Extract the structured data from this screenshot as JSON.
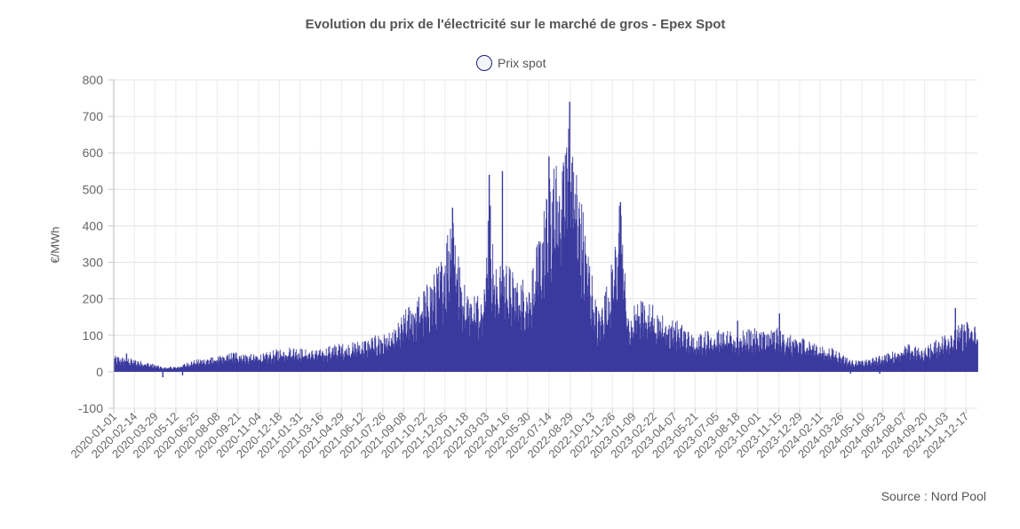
{
  "chart_data": {
    "type": "bar",
    "title": "Evolution du prix de l'électricité sur le marché de gros - Epex Spot",
    "ylabel": "€/MWh",
    "xlabel": "",
    "ylim": [
      -100,
      800
    ],
    "yticks": [
      "800",
      "700",
      "600",
      "500",
      "400",
      "300",
      "200",
      "100",
      "0",
      "-100"
    ],
    "grid": true,
    "legend_position": "top-center",
    "series": [
      {
        "name": "Prix spot",
        "color": "#3a3a9e",
        "frequency": "daily",
        "anchors": [
          [
            "2020-01-01",
            35
          ],
          [
            "2020-02-01",
            30
          ],
          [
            "2020-03-15",
            20
          ],
          [
            "2020-04-15",
            10
          ],
          [
            "2020-05-15",
            12
          ],
          [
            "2020-06-15",
            25
          ],
          [
            "2020-07-15",
            30
          ],
          [
            "2020-08-15",
            35
          ],
          [
            "2020-09-15",
            45
          ],
          [
            "2020-10-15",
            38
          ],
          [
            "2020-11-15",
            40
          ],
          [
            "2020-12-15",
            50
          ],
          [
            "2021-01-15",
            55
          ],
          [
            "2021-02-15",
            48
          ],
          [
            "2021-03-15",
            50
          ],
          [
            "2021-04-15",
            60
          ],
          [
            "2021-05-15",
            62
          ],
          [
            "2021-06-15",
            70
          ],
          [
            "2021-07-15",
            80
          ],
          [
            "2021-08-15",
            85
          ],
          [
            "2021-09-15",
            140
          ],
          [
            "2021-10-15",
            170
          ],
          [
            "2021-11-15",
            220
          ],
          [
            "2021-12-01",
            260
          ],
          [
            "2021-12-21",
            380
          ],
          [
            "2022-01-05",
            230
          ],
          [
            "2022-01-20",
            180
          ],
          [
            "2022-02-15",
            170
          ],
          [
            "2022-03-01",
            230
          ],
          [
            "2022-03-08",
            420
          ],
          [
            "2022-03-20",
            220
          ],
          [
            "2022-04-10",
            250
          ],
          [
            "2022-05-01",
            210
          ],
          [
            "2022-06-01",
            200
          ],
          [
            "2022-06-20",
            280
          ],
          [
            "2022-07-15",
            420
          ],
          [
            "2022-08-01",
            460
          ],
          [
            "2022-08-20",
            560
          ],
          [
            "2022-08-26",
            650
          ],
          [
            "2022-09-10",
            450
          ],
          [
            "2022-10-01",
            300
          ],
          [
            "2022-10-25",
            130
          ],
          [
            "2022-11-20",
            210
          ],
          [
            "2022-12-12",
            380
          ],
          [
            "2022-12-31",
            100
          ],
          [
            "2023-01-15",
            160
          ],
          [
            "2023-02-15",
            150
          ],
          [
            "2023-03-15",
            120
          ],
          [
            "2023-04-15",
            110
          ],
          [
            "2023-05-15",
            80
          ],
          [
            "2023-06-15",
            90
          ],
          [
            "2023-07-15",
            90
          ],
          [
            "2023-08-15",
            85
          ],
          [
            "2023-09-15",
            95
          ],
          [
            "2023-10-15",
            90
          ],
          [
            "2023-11-15",
            95
          ],
          [
            "2023-12-15",
            75
          ],
          [
            "2024-01-15",
            75
          ],
          [
            "2024-02-15",
            55
          ],
          [
            "2024-03-15",
            50
          ],
          [
            "2024-04-15",
            25
          ],
          [
            "2024-05-15",
            25
          ],
          [
            "2024-06-15",
            35
          ],
          [
            "2024-07-15",
            45
          ],
          [
            "2024-08-15",
            60
          ],
          [
            "2024-09-15",
            50
          ],
          [
            "2024-10-15",
            70
          ],
          [
            "2024-11-15",
            95
          ],
          [
            "2024-12-15",
            110
          ],
          [
            "2025-01-10",
            105
          ]
        ]
      }
    ],
    "x_range": [
      "2020-01-01",
      "2025-01-10"
    ],
    "x_tick_labels": [
      "2020-01-01",
      "2020-02-14",
      "2020-03-29",
      "2020-05-12",
      "2020-06-25",
      "2020-08-08",
      "2020-09-21",
      "2020-11-04",
      "2020-12-18",
      "2021-01-31",
      "2021-03-16",
      "2021-04-29",
      "2021-06-12",
      "2021-07-26",
      "2021-09-08",
      "2021-10-22",
      "2021-12-05",
      "2022-01-18",
      "2022-03-03",
      "2022-04-16",
      "2022-05-30",
      "2022-07-14",
      "2022-08-29",
      "2022-10-13",
      "2022-11-26",
      "2023-01-09",
      "2023-02-22",
      "2023-04-07",
      "2023-05-21",
      "2023-07-05",
      "2023-08-18",
      "2023-10-01",
      "2023-11-15",
      "2023-12-29",
      "2024-02-11",
      "2024-03-26",
      "2024-05-10",
      "2024-06-23",
      "2024-08-07",
      "2024-09-20",
      "2024-11-03",
      "2024-12-17"
    ],
    "peaks": [
      [
        "2020-01-27",
        50
      ],
      [
        "2021-12-20",
        450
      ],
      [
        "2022-03-08",
        540
      ],
      [
        "2022-04-05",
        550
      ],
      [
        "2022-07-13",
        590
      ],
      [
        "2022-08-26",
        740
      ],
      [
        "2022-12-12",
        465
      ],
      [
        "2023-08-18",
        140
      ],
      [
        "2023-11-15",
        160
      ],
      [
        "2024-11-23",
        175
      ]
    ],
    "dips": [
      [
        "2020-04-13",
        -15
      ],
      [
        "2020-05-25",
        -10
      ],
      [
        "2024-04-14",
        -5
      ],
      [
        "2024-06-15",
        -5
      ]
    ]
  },
  "source_text": "Source : Nord Pool"
}
